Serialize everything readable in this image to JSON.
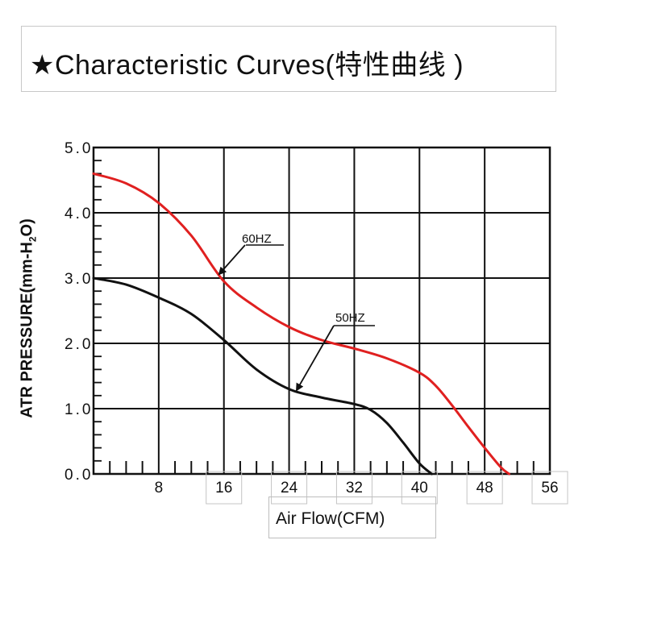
{
  "title": "★Characteristic Curves(特性曲线 )",
  "chart_data": {
    "type": "line",
    "xlabel": "Air Flow(CFM)",
    "ylabel": "ATR PRESSURE(mm-H2O)",
    "ylabel_parts": {
      "pre": "ATR PRESSURE(mm-H",
      "sub": "2",
      "post": "O)"
    },
    "xlim": [
      0,
      56
    ],
    "ylim": [
      0,
      5
    ],
    "x_ticks": [
      "8",
      "16",
      "24",
      "32",
      "40",
      "48",
      "56"
    ],
    "x_tick_values": [
      8,
      16,
      24,
      32,
      40,
      48,
      56
    ],
    "y_ticks": [
      "0.0",
      "1.0",
      "2.0",
      "3.0",
      "4.0",
      "5.0"
    ],
    "y_tick_values": [
      0,
      1,
      2,
      3,
      4,
      5
    ],
    "grid": true,
    "series": [
      {
        "name": "60HZ",
        "color": "#e02020",
        "x": [
          0,
          4,
          8,
          12,
          16,
          20,
          24,
          28,
          32,
          36,
          40,
          42,
          44,
          46,
          48,
          50,
          51
        ],
        "y": [
          4.6,
          4.45,
          4.15,
          3.65,
          2.95,
          2.55,
          2.25,
          2.05,
          1.92,
          1.77,
          1.55,
          1.35,
          1.05,
          0.72,
          0.4,
          0.1,
          0.0
        ]
      },
      {
        "name": "50HZ",
        "color": "#111111",
        "x": [
          0,
          4,
          8,
          12,
          16,
          20,
          24,
          28,
          32,
          34,
          36,
          38,
          40,
          41.5
        ],
        "y": [
          3.0,
          2.9,
          2.7,
          2.45,
          2.05,
          1.6,
          1.3,
          1.17,
          1.07,
          0.98,
          0.78,
          0.48,
          0.16,
          0.0
        ]
      }
    ],
    "annotations": [
      {
        "text": "60HZ",
        "series": "60HZ"
      },
      {
        "text": "50HZ",
        "series": "50HZ"
      }
    ]
  }
}
